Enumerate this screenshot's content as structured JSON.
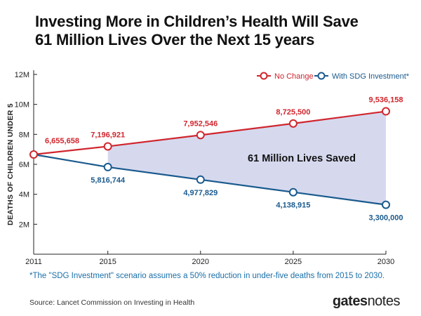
{
  "title_line1": "Investing More in Children’s Health Will Save",
  "title_line2": "61 Million Lives Over the Next 15 years",
  "footnote": "*The \"SDG Investment\" scenario assumes a 50% reduction in under-five deaths from 2015 to 2030.",
  "source": "Source: Lancet Commission on Investing in Health",
  "brand": {
    "bold": "gates",
    "light": "notes"
  },
  "colors": {
    "no_change": "#d0262e",
    "sdg": "#1a5a8e",
    "fill": "#d6d9ee",
    "annotation": "#111111"
  },
  "chart_data": {
    "type": "line",
    "title": "Investing More in Children’s Health Will Save 61 Million Lives Over the Next 15 years",
    "xlabel": "",
    "ylabel": "DEATHS OF CHILDREN UNDER 5",
    "x": [
      2011,
      2015,
      2020,
      2025,
      2030
    ],
    "x_tick_labels": [
      "2011",
      "2015",
      "2020",
      "2025",
      "2030"
    ],
    "ylim": [
      0,
      12000000
    ],
    "y_ticks": [
      2000000,
      4000000,
      6000000,
      8000000,
      10000000,
      12000000
    ],
    "y_tick_labels": [
      "2M",
      "4M",
      "6M",
      "8M",
      "10M",
      "12M"
    ],
    "legend_position": "top-right",
    "grid": false,
    "series": [
      {
        "name": "No Change",
        "key": "no_change",
        "values": [
          6655658,
          7196921,
          7952546,
          8725500,
          9536158
        ],
        "labels": [
          "6,655,658",
          "7,196,921",
          "7,952,546",
          "8,725,500",
          "9,536,158"
        ]
      },
      {
        "name": "With SDG Investment*",
        "key": "sdg",
        "values": [
          6655658,
          5816744,
          4977829,
          4138915,
          3300000
        ],
        "labels": [
          "",
          "5,816,744",
          "4,977,829",
          "4,138,915",
          "3,300,000"
        ]
      }
    ],
    "annotation": "61 Million Lives Saved"
  }
}
